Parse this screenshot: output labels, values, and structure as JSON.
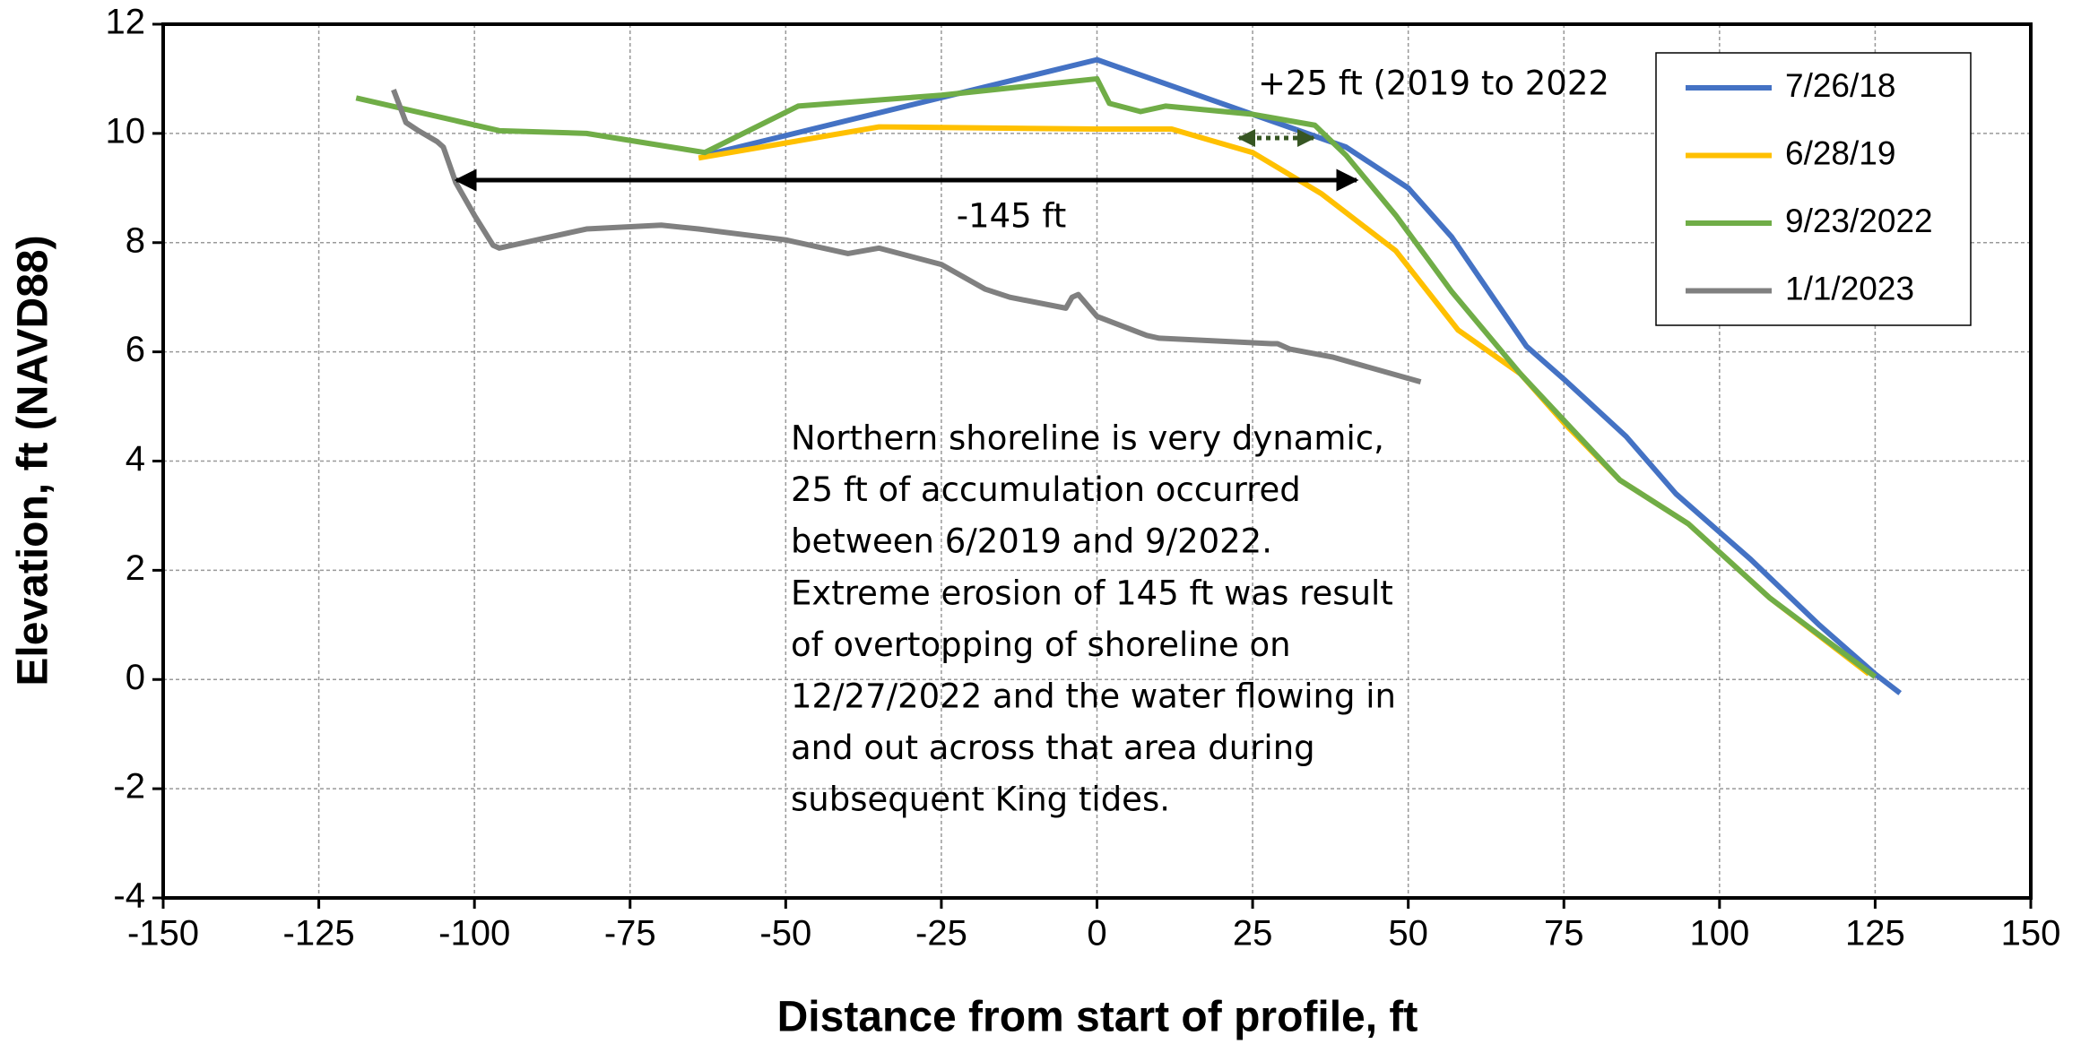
{
  "chart_data": {
    "type": "line",
    "xlabel": "Distance from start of profile, ft",
    "ylabel": "Elevation, ft (NAVD88)",
    "xlim": [
      -150,
      150
    ],
    "xticks": [
      -150,
      -125,
      -100,
      -75,
      -50,
      -25,
      0,
      25,
      50,
      75,
      100,
      125,
      150
    ],
    "ylim": [
      -4,
      12
    ],
    "yticks": [
      -4,
      -2,
      0,
      2,
      4,
      6,
      8,
      10,
      12
    ],
    "grid": true,
    "legend": "upper right",
    "annotations": [
      "+25 ft (2019 to 2022",
      "-145 ft"
    ],
    "note": [
      "Northern shoreline is very dynamic,",
      "25 ft of accumulation occurred",
      "between 6/2019 and 9/2022.",
      "Extreme erosion of 145 ft was result",
      "of overtopping of shoreline on",
      "12/27/2022 and the water flowing in",
      "and out across that area during",
      "subsequent King tides."
    ],
    "series": [
      {
        "name": "7/26/18",
        "color": "#4472c4",
        "x": [
          -63,
          0,
          40,
          50,
          57,
          69,
          75,
          85,
          93,
          100,
          105,
          116,
          125,
          129
        ],
        "values": [
          9.6,
          11.35,
          9.75,
          9.0,
          8.1,
          6.1,
          5.5,
          4.45,
          3.4,
          2.7,
          2.2,
          1.0,
          0.1,
          -0.25
        ]
      },
      {
        "name": "6/28/19",
        "color": "#ffc000",
        "x": [
          -64,
          -35,
          0,
          12,
          25,
          36,
          48,
          58,
          68,
          75,
          84,
          95,
          108,
          124
        ],
        "values": [
          9.55,
          10.12,
          10.08,
          10.08,
          9.65,
          8.9,
          7.85,
          6.4,
          5.6,
          4.7,
          3.65,
          2.85,
          1.5,
          0.1
        ]
      },
      {
        "name": "9/23/2022",
        "color": "#70ad47",
        "x": [
          -119,
          -96,
          -82,
          -63,
          -48,
          -25,
          0,
          2,
          7,
          11,
          25,
          35,
          40,
          48,
          57,
          68,
          84,
          95,
          108,
          125
        ],
        "values": [
          10.65,
          10.05,
          10.0,
          9.65,
          10.5,
          10.7,
          11.0,
          10.55,
          10.4,
          10.5,
          10.35,
          10.15,
          9.6,
          8.5,
          7.1,
          5.6,
          3.65,
          2.85,
          1.5,
          0.05
        ]
      },
      {
        "name": "1/1/2023",
        "color": "#808080",
        "x": [
          -113,
          -111,
          -109,
          -106,
          -105,
          -103,
          -100,
          -97,
          -96,
          -92,
          -82,
          -70,
          -64,
          -50,
          -40,
          -35,
          -25,
          -18,
          -14,
          -5,
          -4,
          -3,
          0,
          8,
          10,
          28,
          29,
          31,
          38,
          52
        ],
        "values": [
          10.8,
          10.2,
          10.05,
          9.85,
          9.75,
          9.1,
          8.5,
          7.95,
          7.9,
          8.0,
          8.25,
          8.32,
          8.25,
          8.05,
          7.8,
          7.9,
          7.6,
          7.15,
          7.0,
          6.8,
          7.0,
          7.05,
          6.65,
          6.3,
          6.25,
          6.15,
          6.15,
          6.05,
          5.9,
          5.45
        ]
      }
    ]
  }
}
